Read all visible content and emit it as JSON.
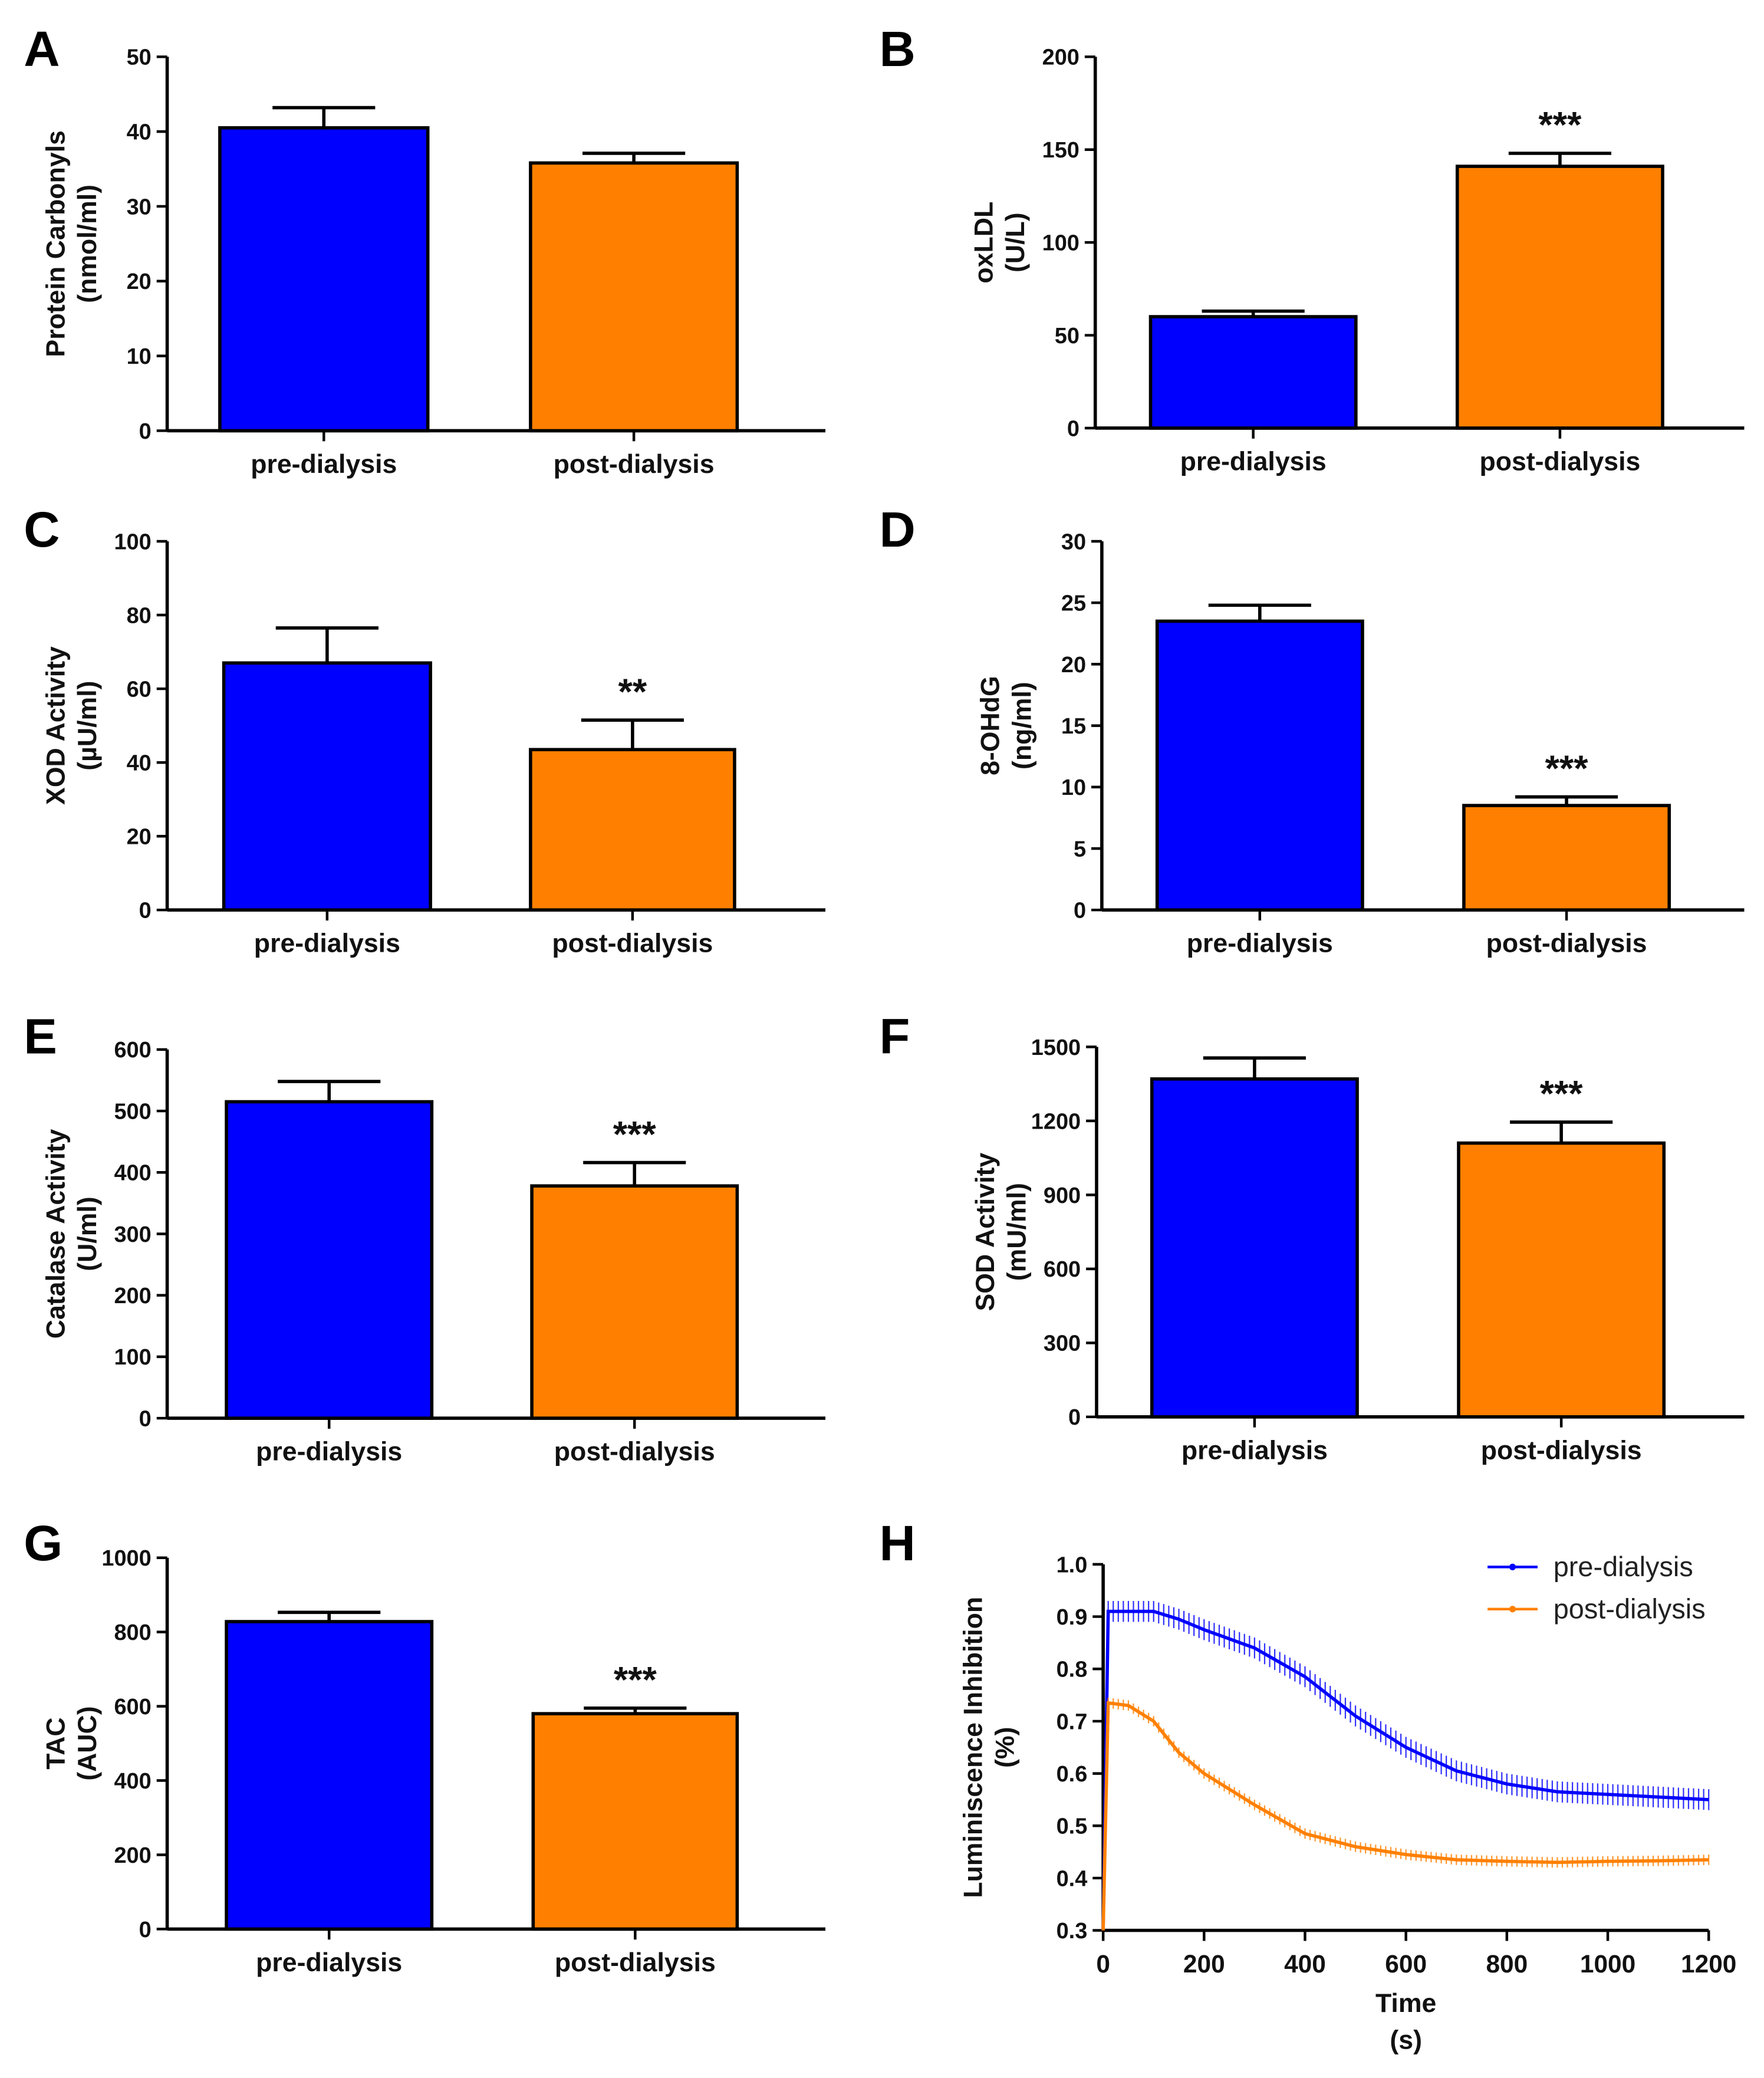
{
  "colors": {
    "pre": "#0000FF",
    "post": "#FF8000",
    "axis": "#000000"
  },
  "chart_data": [
    {
      "panel": "A",
      "type": "bar",
      "categories": [
        "pre-dialysis",
        "post-dialysis"
      ],
      "values": [
        40.5,
        35.8
      ],
      "errors": [
        2.7,
        1.3
      ],
      "significance": [
        "",
        ""
      ],
      "ylabel": [
        "Protein Carbonyls",
        "(nmol/ml)"
      ],
      "ylim": [
        0,
        50
      ],
      "yticks": [
        0,
        10,
        20,
        30,
        40,
        50
      ]
    },
    {
      "panel": "B",
      "type": "bar",
      "categories": [
        "pre-dialysis",
        "post-dialysis"
      ],
      "values": [
        60,
        141
      ],
      "errors": [
        3,
        7
      ],
      "significance": [
        "",
        "***"
      ],
      "ylabel": [
        "oxLDL",
        "(U/L)"
      ],
      "ylim": [
        0,
        200
      ],
      "yticks": [
        0,
        50,
        100,
        150,
        200
      ]
    },
    {
      "panel": "C",
      "type": "bar",
      "categories": [
        "pre-dialysis",
        "post-dialysis"
      ],
      "values": [
        67,
        43.5
      ],
      "errors": [
        9.5,
        8
      ],
      "significance": [
        "",
        "**"
      ],
      "ylabel": [
        "XOD Activity",
        "(µU/ml)"
      ],
      "ylim": [
        0,
        100
      ],
      "yticks": [
        0,
        20,
        40,
        60,
        80,
        100
      ]
    },
    {
      "panel": "D",
      "type": "bar",
      "categories": [
        "pre-dialysis",
        "post-dialysis"
      ],
      "values": [
        23.5,
        8.5
      ],
      "errors": [
        1.3,
        0.7
      ],
      "significance": [
        "",
        "***"
      ],
      "ylabel": [
        "8-OHdG",
        "(ng/ml)"
      ],
      "ylim": [
        0,
        30
      ],
      "yticks": [
        0,
        5,
        10,
        15,
        20,
        25,
        30
      ]
    },
    {
      "panel": "E",
      "type": "bar",
      "categories": [
        "pre-dialysis",
        "post-dialysis"
      ],
      "values": [
        515,
        378
      ],
      "errors": [
        33,
        38
      ],
      "significance": [
        "",
        "***"
      ],
      "ylabel": [
        "Catalase Activity",
        "(U/ml)"
      ],
      "ylim": [
        0,
        600
      ],
      "yticks": [
        0,
        100,
        200,
        300,
        400,
        500,
        600
      ]
    },
    {
      "panel": "F",
      "type": "bar",
      "categories": [
        "pre-dialysis",
        "post-dialysis"
      ],
      "values": [
        1370,
        1110
      ],
      "errors": [
        85,
        85
      ],
      "significance": [
        "",
        "***"
      ],
      "ylabel": [
        "SOD Activity",
        "(mU/ml)"
      ],
      "ylim": [
        0,
        1500
      ],
      "yticks": [
        0,
        300,
        600,
        900,
        1200,
        1500
      ]
    },
    {
      "panel": "G",
      "type": "bar",
      "categories": [
        "pre-dialysis",
        "post-dialysis"
      ],
      "values": [
        828,
        580
      ],
      "errors": [
        25,
        15
      ],
      "significance": [
        "",
        "***"
      ],
      "ylabel": [
        "TAC",
        "(AUC)"
      ],
      "ylim": [
        0,
        1000
      ],
      "yticks": [
        0,
        200,
        400,
        600,
        800,
        1000
      ]
    },
    {
      "panel": "H",
      "type": "line",
      "xlabel": [
        "Time",
        "(s)"
      ],
      "ylabel": [
        "Luminiscence Inhibition",
        "(%)"
      ],
      "xlim": [
        0,
        1200
      ],
      "ylim": [
        0.3,
        1.0
      ],
      "xticks": [
        0,
        200,
        400,
        600,
        800,
        1000,
        1200
      ],
      "yticks": [
        0.3,
        0.4,
        0.5,
        0.6,
        0.7,
        0.8,
        0.9,
        1.0
      ],
      "legend": "top-right",
      "series": [
        {
          "name": "pre-dialysis",
          "x": [
            0,
            10,
            50,
            100,
            150,
            200,
            300,
            400,
            500,
            600,
            700,
            800,
            900,
            1000,
            1100,
            1200
          ],
          "y": [
            0.3,
            0.91,
            0.91,
            0.91,
            0.895,
            0.875,
            0.84,
            0.785,
            0.71,
            0.65,
            0.605,
            0.58,
            0.565,
            0.56,
            0.555,
            0.55
          ],
          "error": 0.02
        },
        {
          "name": "post-dialysis",
          "x": [
            0,
            10,
            50,
            100,
            150,
            200,
            300,
            400,
            500,
            600,
            700,
            800,
            900,
            1000,
            1100,
            1200
          ],
          "y": [
            0.3,
            0.735,
            0.73,
            0.7,
            0.64,
            0.6,
            0.54,
            0.485,
            0.46,
            0.445,
            0.435,
            0.432,
            0.43,
            0.432,
            0.433,
            0.435
          ],
          "error": 0.01
        }
      ]
    }
  ]
}
